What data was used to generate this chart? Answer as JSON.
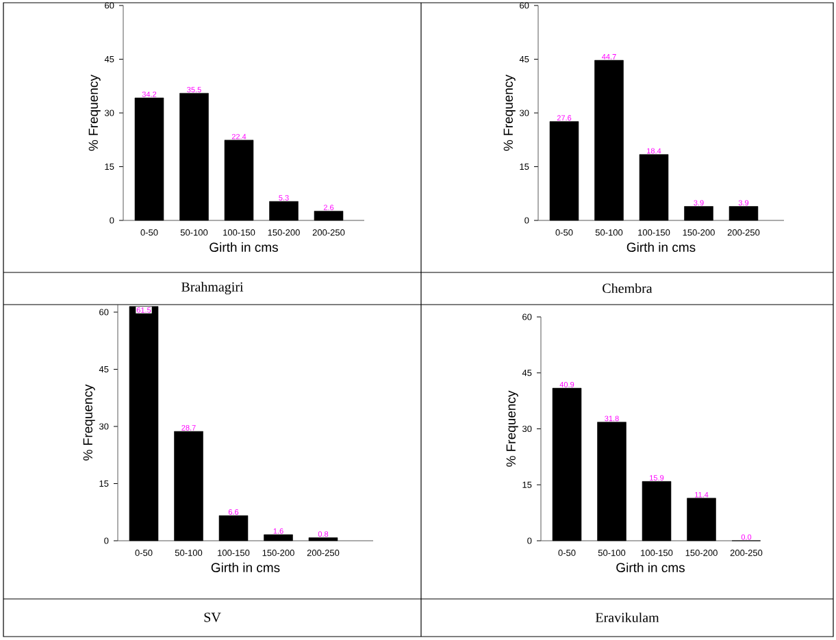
{
  "chart_data": [
    {
      "type": "bar",
      "title": "Brahmagiri",
      "xlabel": "Girth in cms",
      "ylabel": "% Frequency",
      "categories": [
        "0-50",
        "50-100",
        "100-150",
        "150-200",
        "200-250"
      ],
      "values": [
        34.2,
        35.5,
        22.4,
        5.3,
        2.6
      ],
      "value_labels": [
        "34.2",
        "35.5",
        "22.4",
        "5.3",
        "2.6"
      ],
      "color": "#000000",
      "ylim": [
        0,
        60
      ],
      "yticks": [
        0,
        15,
        30,
        45,
        60
      ]
    },
    {
      "type": "bar",
      "title": "Chembra",
      "xlabel": "Girth in cms",
      "ylabel": "% Frequency",
      "categories": [
        "0-50",
        "50-100",
        "100-150",
        "150-200",
        "200-250"
      ],
      "values": [
        27.6,
        44.7,
        18.4,
        3.9,
        3.9
      ],
      "value_labels": [
        "27.6",
        "44.7",
        "18.4",
        "3.9",
        "3.9"
      ],
      "color": "#000000",
      "ylim": [
        0,
        60
      ],
      "yticks": [
        0,
        15,
        30,
        45,
        60
      ]
    },
    {
      "type": "bar",
      "title": "SV",
      "xlabel": "Girth in cms",
      "ylabel": "% Frequency",
      "categories": [
        "0-50",
        "50-100",
        "100-150",
        "150-200",
        "200-250"
      ],
      "values": [
        61.5,
        28.7,
        6.6,
        1.6,
        0.8
      ],
      "value_labels": [
        "61.5",
        "28.7",
        "6.6",
        "1.6",
        "0.8"
      ],
      "color": "#000000",
      "ylim": [
        0,
        62
      ],
      "yticks": [
        0,
        15,
        30,
        45,
        60
      ]
    },
    {
      "type": "bar",
      "title": "Eravikulam",
      "xlabel": "Girth in cms",
      "ylabel": "% Frequency",
      "categories": [
        "0-50",
        "50-100",
        "100-150",
        "150-200",
        "200-250"
      ],
      "values": [
        40.9,
        31.8,
        15.9,
        11.4,
        0.0
      ],
      "value_labels": [
        "40.9",
        "31.8",
        "15.9",
        "11.4",
        "0.0"
      ],
      "color": "#000000",
      "ylim": [
        0,
        60
      ],
      "yticks": [
        0,
        15,
        30,
        45,
        60
      ]
    }
  ]
}
